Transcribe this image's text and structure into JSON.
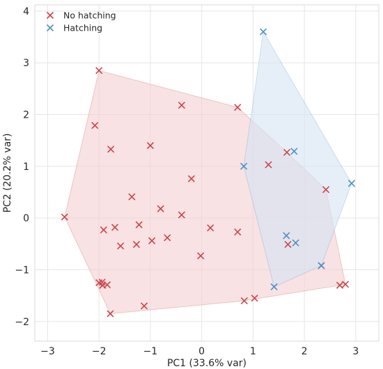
{
  "chart_data": {
    "type": "scatter",
    "xlabel": "PC1 (33.6% var)",
    "ylabel": "PC2 (20.2% var)",
    "xlim": [
      -3.25,
      3.45
    ],
    "ylim": [
      -2.38,
      4.12
    ],
    "xticks": [
      -3,
      -2,
      -1,
      0,
      1,
      2,
      3
    ],
    "yticks": [
      -2,
      -1,
      0,
      1,
      2,
      3,
      4
    ],
    "xtick_labels": [
      "−3",
      "−2",
      "−1",
      "0",
      "1",
      "2",
      "3"
    ],
    "ytick_labels": [
      "−2",
      "−1",
      "0",
      "1",
      "2",
      "3",
      "4"
    ],
    "grid": true,
    "legend_position": "top-left",
    "marker": "x",
    "series": [
      {
        "name": "No hatching",
        "color": "#cc4449",
        "hull_fill": "#f3cfd0",
        "points": [
          [
            -2.67,
            0.02
          ],
          [
            -2.0,
            2.85
          ],
          [
            -2.08,
            1.79
          ],
          [
            -1.77,
            1.33
          ],
          [
            -0.39,
            2.18
          ],
          [
            0.7,
            2.14
          ],
          [
            -1.0,
            1.4
          ],
          [
            -0.2,
            0.76
          ],
          [
            -1.36,
            0.41
          ],
          [
            -0.8,
            0.18
          ],
          [
            -0.39,
            0.06
          ],
          [
            -1.22,
            -0.13
          ],
          [
            -1.69,
            -0.18
          ],
          [
            -1.91,
            -0.23
          ],
          [
            -1.58,
            -0.54
          ],
          [
            -1.27,
            -0.51
          ],
          [
            -0.97,
            -0.44
          ],
          [
            -0.67,
            -0.38
          ],
          [
            0.17,
            -0.19
          ],
          [
            0.7,
            -0.27
          ],
          [
            -0.02,
            -0.73
          ],
          [
            -2.0,
            -1.25
          ],
          [
            -1.94,
            -1.24
          ],
          [
            -1.93,
            -1.3
          ],
          [
            -1.84,
            -1.29
          ],
          [
            -1.78,
            -1.85
          ],
          [
            -1.12,
            -1.7
          ],
          [
            0.83,
            -1.6
          ],
          [
            1.03,
            -1.55
          ],
          [
            1.3,
            1.03
          ],
          [
            1.66,
            1.27
          ],
          [
            2.42,
            0.55
          ],
          [
            1.68,
            -0.51
          ],
          [
            2.33,
            -0.92
          ],
          [
            2.69,
            -1.3
          ],
          [
            2.8,
            -1.28
          ]
        ]
      },
      {
        "name": "Hatching",
        "color": "#4a90c8",
        "hull_fill": "#d6e4f4",
        "points": [
          [
            1.2,
            3.6
          ],
          [
            2.92,
            0.67
          ],
          [
            1.8,
            1.29
          ],
          [
            0.82,
            1.0
          ],
          [
            1.65,
            -0.34
          ],
          [
            1.83,
            -0.48
          ],
          [
            2.33,
            -0.92
          ],
          [
            1.41,
            -1.33
          ]
        ]
      }
    ]
  }
}
